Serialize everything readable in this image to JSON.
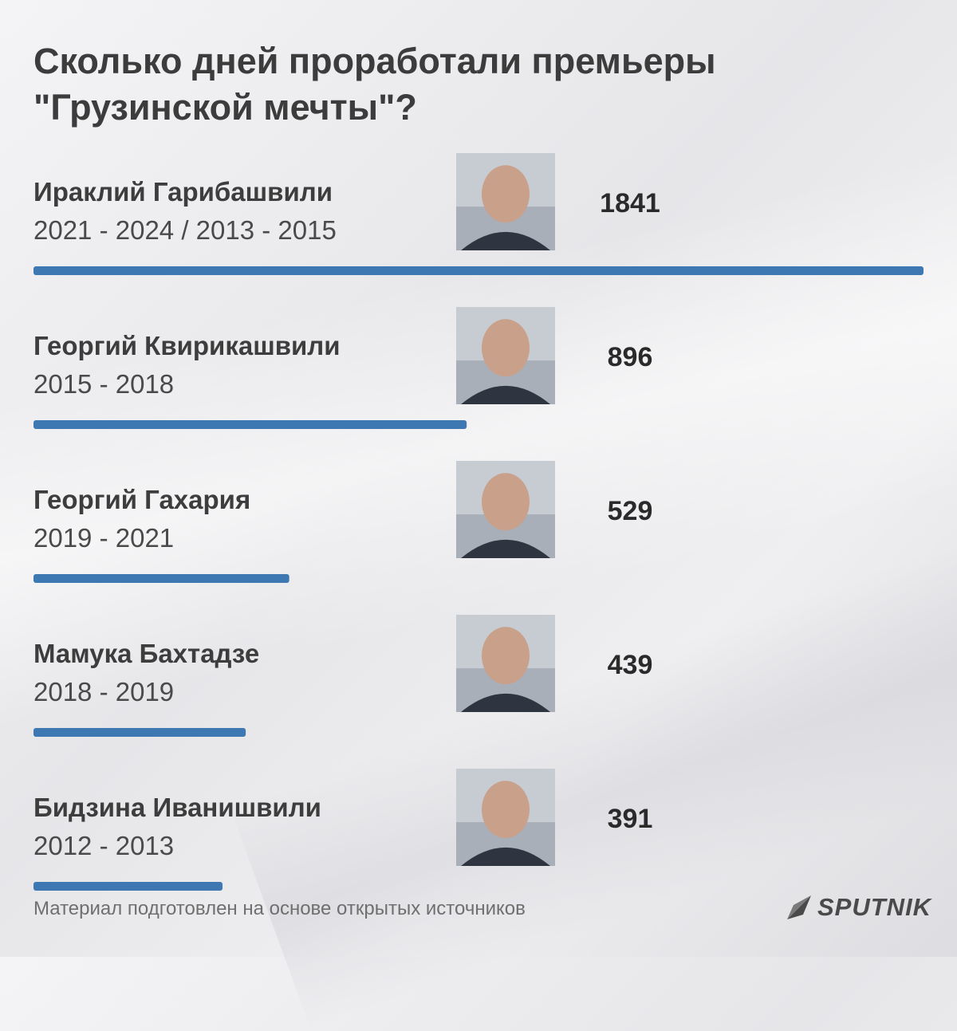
{
  "title_lines": [
    "Сколько дней проработали премьеры",
    "\"Грузинской мечты\"?"
  ],
  "footer_note": "Материал подготовлен на основе открытых источников",
  "logo_text": "SPUTNIK",
  "colors": {
    "bar": "#3d78b3",
    "text": "#3c3c3c"
  },
  "chart_data": {
    "type": "bar",
    "orientation": "horizontal",
    "title": "Сколько дней проработали премьеры \"Грузинской мечты\"?",
    "categories": [
      "Ираклий Гарибашвили",
      "Георгий Квирикашвили",
      "Георгий Гахария",
      "Мамука Бахтадзе",
      "Бидзина Иванишвили"
    ],
    "periods": [
      "2021 - 2024 / 2013 - 2015",
      "2015 - 2018",
      "2019 - 2021",
      "2018 - 2019",
      "2012 - 2013"
    ],
    "values": [
      1841,
      896,
      529,
      439,
      391
    ],
    "xlim": [
      0,
      1841
    ],
    "grid": false,
    "legend": "none"
  }
}
